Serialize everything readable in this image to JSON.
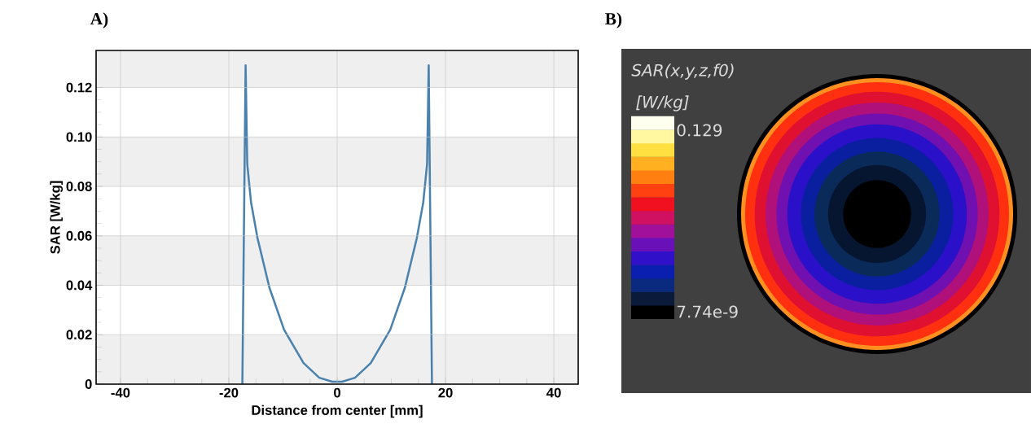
{
  "chart_data": [
    {
      "type": "line",
      "title": "A)",
      "xlabel": "Distance from center [mm]",
      "ylabel": "SAR [W/kg]",
      "x": [
        -17.5,
        -16.9,
        -16.6,
        -15.9,
        -14.7,
        -12.5,
        -9.8,
        -6.2,
        -3.3,
        -0.9,
        0,
        0.9,
        3.3,
        6.2,
        9.8,
        12.5,
        14.7,
        15.9,
        16.6,
        16.9,
        17.5
      ],
      "values": [
        0,
        0.129,
        0.089,
        0.0736,
        0.059,
        0.039,
        0.022,
        0.0085,
        0.0026,
        0.001,
        0.001,
        0.001,
        0.0026,
        0.0085,
        0.022,
        0.039,
        0.059,
        0.0736,
        0.089,
        0.129,
        0
      ],
      "color": "#4a82ad",
      "xlim": [
        -44.5,
        44.5
      ],
      "ylim": [
        0,
        0.135
      ],
      "xticks": [
        -40,
        -20,
        0,
        20,
        40
      ],
      "yticks": [
        0,
        0.02,
        0.04,
        0.06,
        0.08,
        {
          "value": 0.1,
          "label": "0.10"
        },
        0.12
      ],
      "grid": true,
      "bands": [
        {
          "axis": "y",
          "from": 0,
          "to": 0.02,
          "color": "#efefef"
        },
        {
          "axis": "y",
          "from": 0.04,
          "to": 0.06,
          "color": "#efefef"
        },
        {
          "axis": "y",
          "from": 0.08,
          "to": 0.1,
          "color": "#efefef"
        },
        {
          "axis": "y",
          "from": 0.12,
          "to": 0.135,
          "color": "#efefef"
        }
      ]
    },
    {
      "type": "other",
      "title": "B)",
      "annotations": [
        "SAR(x,y,z,f0)",
        "[W/kg]",
        "0.129",
        "7.74e-9"
      ]
    }
  ]
}
